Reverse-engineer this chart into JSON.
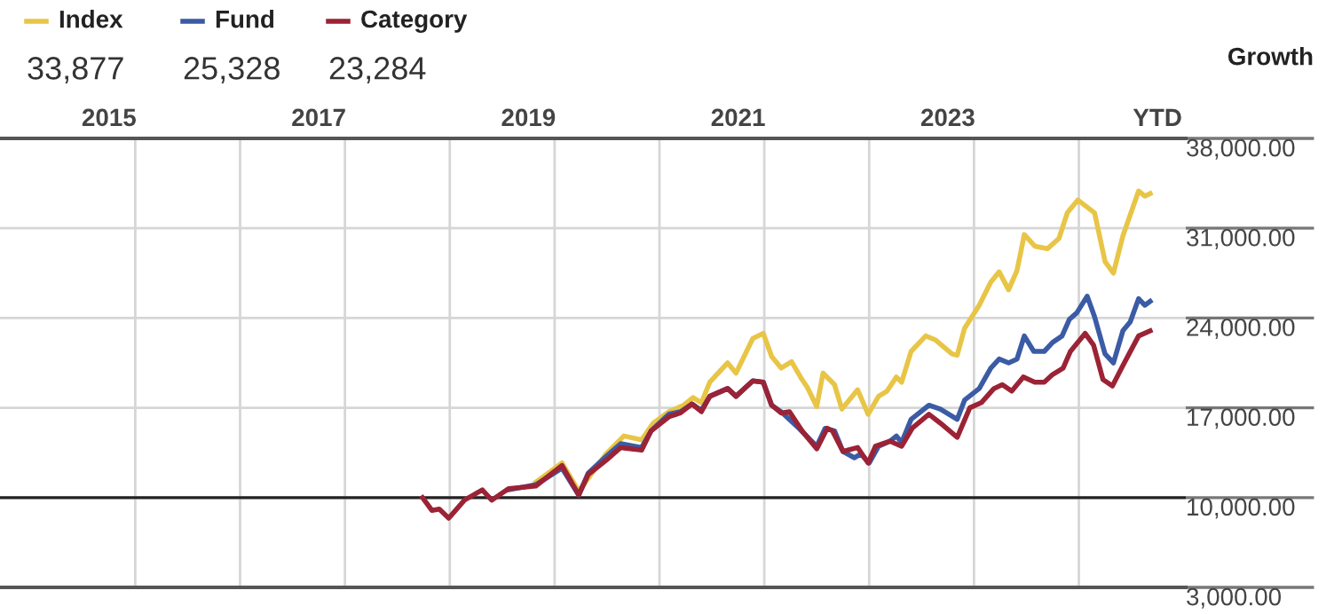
{
  "chart_data": {
    "type": "line",
    "ylabel": "Growth",
    "xlim": [
      2013.96,
      2025.27
    ],
    "xticks": [
      2015,
      2017,
      2019,
      2021,
      2023,
      {
        "value": 2025,
        "label": "YTD"
      },
      {
        "value": 2015.25,
        "label": null
      },
      {
        "value": 2016.25,
        "label": null
      },
      {
        "value": 2017.25,
        "label": null
      },
      {
        "value": 2018.25,
        "label": null
      },
      {
        "value": 2019.25,
        "label": null
      },
      {
        "value": 2020.25,
        "label": null
      },
      {
        "value": 2021.25,
        "label": null
      },
      {
        "value": 2022.25,
        "label": null
      },
      {
        "value": 2023.25,
        "label": null
      },
      {
        "value": 2024.25,
        "label": null
      }
    ],
    "ylim": [
      3000,
      38000
    ],
    "yticks": [
      {
        "value": 3000,
        "label": "3,000.00"
      },
      {
        "value": 10000,
        "label": "10,000.00"
      },
      {
        "value": 17000,
        "label": "17,000.00"
      },
      {
        "value": 24000,
        "label": "24,000.00"
      },
      {
        "value": 31000,
        "label": "31,000.00"
      },
      {
        "value": 38000,
        "label": "38,000.00"
      }
    ],
    "grid": true,
    "legend": "top left",
    "marker": "none",
    "line_style": "solid",
    "ref_lines": [
      {
        "axis": "y",
        "value": 10000,
        "color": "#222222"
      }
    ],
    "annotations": [
      "33,877",
      "25,328",
      "23,284"
    ],
    "series": [
      {
        "name": "Index",
        "color": "#e8c547",
        "x": [
          2019.07,
          2019.32,
          2019.48,
          2019.74,
          2019.91,
          2020.08,
          2020.19,
          2020.34,
          2020.48,
          2020.57,
          2020.65,
          2020.73,
          2020.9,
          2020.98,
          2021.14,
          2021.24,
          2021.32,
          2021.41,
          2021.51,
          2021.61,
          2021.66,
          2021.75,
          2021.81,
          2021.92,
          2021.99,
          2022.14,
          2022.24,
          2022.34,
          2022.42,
          2022.51,
          2022.56,
          2022.65,
          2022.79,
          2022.88,
          2023.04,
          2023.09,
          2023.16,
          2023.3,
          2023.41,
          2023.49,
          2023.58,
          2023.66,
          2023.73,
          2023.83,
          2023.95,
          2024.06,
          2024.14,
          2024.24,
          2024.4,
          2024.5,
          2024.58,
          2024.67,
          2024.82,
          2024.88,
          2024.93
        ],
        "values": [
          11200,
          12700,
          10500,
          13400,
          14800,
          14500,
          15800,
          16700,
          17200,
          17800,
          17400,
          19000,
          20500,
          19700,
          22400,
          22800,
          21000,
          20100,
          20600,
          19200,
          18600,
          17100,
          19700,
          18800,
          16900,
          18400,
          16500,
          17900,
          18300,
          19400,
          19000,
          21400,
          22600,
          22300,
          21200,
          21100,
          23200,
          25000,
          26800,
          27600,
          26200,
          27700,
          30500,
          29600,
          29400,
          30200,
          32200,
          33200,
          32200,
          28400,
          27500,
          30400,
          33900,
          33500,
          33700
        ]
      },
      {
        "name": "Fund",
        "color": "#3b5ba5",
        "x": [
          2018.81,
          2019.07,
          2019.32,
          2019.48,
          2019.57,
          2019.74,
          2019.88,
          2020.08,
          2020.17,
          2020.34,
          2020.45,
          2020.56,
          2020.65,
          2020.73,
          2020.9,
          2020.98,
          2021.14,
          2021.24,
          2021.32,
          2021.41,
          2021.58,
          2021.75,
          2021.83,
          2021.92,
          2022.0,
          2022.11,
          2022.17,
          2022.25,
          2022.34,
          2022.45,
          2022.51,
          2022.56,
          2022.65,
          2022.82,
          2022.93,
          2023.09,
          2023.16,
          2023.3,
          2023.41,
          2023.49,
          2023.58,
          2023.66,
          2023.73,
          2023.82,
          2023.92,
          2024.0,
          2024.09,
          2024.16,
          2024.23,
          2024.33,
          2024.4,
          2024.5,
          2024.58,
          2024.67,
          2024.74,
          2024.82,
          2024.88,
          2024.93
        ],
        "values": [
          10600,
          11000,
          12300,
          10200,
          11900,
          13200,
          14200,
          13900,
          15200,
          16500,
          16700,
          17300,
          16800,
          17900,
          18500,
          17900,
          19100,
          19000,
          17200,
          16700,
          15400,
          14000,
          15400,
          15200,
          13600,
          13100,
          13400,
          12700,
          14000,
          14400,
          14800,
          14300,
          16100,
          17200,
          16900,
          16100,
          17600,
          18500,
          20100,
          20800,
          20500,
          20800,
          22600,
          21400,
          21400,
          22100,
          22600,
          23900,
          24400,
          25700,
          24100,
          21200,
          20500,
          23000,
          23700,
          25500,
          25000,
          25300
        ]
      },
      {
        "name": "Category",
        "color": "#9b2335",
        "x": [
          2017.99,
          2018.08,
          2018.15,
          2018.24,
          2018.39,
          2018.56,
          2018.65,
          2018.81,
          2019.07,
          2019.32,
          2019.48,
          2019.57,
          2019.74,
          2019.88,
          2020.08,
          2020.17,
          2020.34,
          2020.45,
          2020.56,
          2020.65,
          2020.73,
          2020.9,
          2020.98,
          2021.14,
          2021.24,
          2021.32,
          2021.41,
          2021.49,
          2021.61,
          2021.75,
          2021.85,
          2021.9,
          2022.0,
          2022.14,
          2022.24,
          2022.31,
          2022.45,
          2022.56,
          2022.66,
          2022.82,
          2022.93,
          2023.09,
          2023.21,
          2023.32,
          2023.44,
          2023.52,
          2023.61,
          2023.72,
          2023.83,
          2023.92,
          2024.0,
          2024.1,
          2024.17,
          2024.31,
          2024.39,
          2024.48,
          2024.57,
          2024.67,
          2024.82,
          2024.93
        ],
        "values": [
          10000,
          9000,
          9100,
          8400,
          9800,
          10600,
          9800,
          10700,
          10900,
          12500,
          10200,
          11800,
          12900,
          13900,
          13700,
          15200,
          16300,
          16600,
          17300,
          16700,
          17900,
          18500,
          17900,
          19100,
          19000,
          17200,
          16600,
          16700,
          15200,
          13800,
          15400,
          15200,
          13600,
          13900,
          12700,
          14000,
          14400,
          14000,
          15400,
          16500,
          15800,
          14700,
          17000,
          17400,
          18500,
          18800,
          18300,
          19400,
          19000,
          19000,
          19600,
          20100,
          21400,
          22800,
          21900,
          19200,
          18700,
          20300,
          22600,
          23000
        ]
      }
    ]
  }
}
